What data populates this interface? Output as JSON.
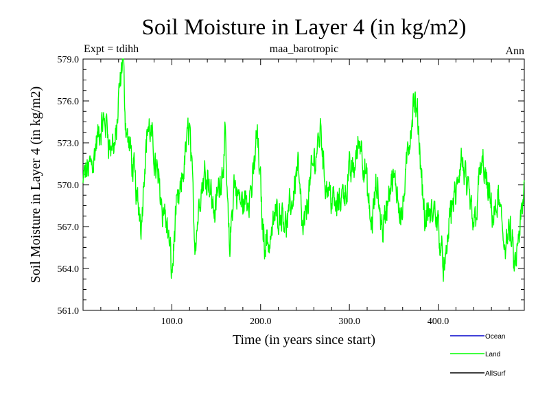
{
  "chart_data": {
    "type": "line",
    "title": "Soil Moisture in Layer 4 (in kg/m2)",
    "subtitle_left": "Expt = tdihh",
    "subtitle_center": "maa_barotropic",
    "subtitle_right": "Ann",
    "xlabel": "Time (in years since start)",
    "ylabel": "Soil Moisture in Layer 4 (in kg/m2)",
    "xlim": [
      0,
      497
    ],
    "ylim": [
      561.0,
      579.0
    ],
    "x_ticks": [
      100,
      200,
      300,
      400
    ],
    "x_tick_labels": [
      "100.0",
      "200.0",
      "300.0",
      "400.0"
    ],
    "y_ticks": [
      561,
      564,
      567,
      570,
      573,
      576,
      579
    ],
    "y_tick_labels": [
      "561.0",
      "564.0",
      "567.0",
      "570.0",
      "573.0",
      "576.0",
      "579.0"
    ],
    "legend": {
      "position": "bottom-right",
      "entries": [
        {
          "name": "Ocean",
          "color": "#0000cc"
        },
        {
          "name": "Land",
          "color": "#00ff00"
        },
        {
          "name": "AllSurf",
          "color": "#000000"
        }
      ]
    },
    "series": [
      {
        "name": "Land",
        "color": "#00ff00",
        "anchors": [
          [
            0,
            570.0
          ],
          [
            8,
            571.5
          ],
          [
            14,
            572.8
          ],
          [
            20,
            573.5
          ],
          [
            26,
            574.5
          ],
          [
            32,
            572.5
          ],
          [
            37,
            573.2
          ],
          [
            40,
            575.6
          ],
          [
            43,
            577.3
          ],
          [
            45,
            578.8
          ],
          [
            48,
            574.5
          ],
          [
            55,
            571.5
          ],
          [
            62,
            568.5
          ],
          [
            66,
            568.0
          ],
          [
            70,
            572.5
          ],
          [
            73,
            574.5
          ],
          [
            80,
            572.0
          ],
          [
            88,
            569.5
          ],
          [
            95,
            567.0
          ],
          [
            100,
            563.5
          ],
          [
            104,
            567.5
          ],
          [
            110,
            569.0
          ],
          [
            116,
            572.5
          ],
          [
            120,
            574.5
          ],
          [
            126,
            566.0
          ],
          [
            132,
            569.5
          ],
          [
            140,
            571.5
          ],
          [
            148,
            568.0
          ],
          [
            155,
            570.5
          ],
          [
            160,
            573.0
          ],
          [
            165,
            565.0
          ],
          [
            170,
            570.0
          ],
          [
            178,
            568.5
          ],
          [
            186,
            569.0
          ],
          [
            192,
            570.5
          ],
          [
            196,
            574.0
          ],
          [
            203,
            566.5
          ],
          [
            210,
            566.0
          ],
          [
            217,
            568.0
          ],
          [
            225,
            568.5
          ],
          [
            230,
            567.0
          ],
          [
            236,
            569.0
          ],
          [
            242,
            572.0
          ],
          [
            248,
            566.0
          ],
          [
            254,
            569.5
          ],
          [
            262,
            572.0
          ],
          [
            268,
            574.5
          ],
          [
            272,
            570.5
          ],
          [
            280,
            569.5
          ],
          [
            285,
            568.0
          ],
          [
            292,
            569.5
          ],
          [
            300,
            570.5
          ],
          [
            306,
            571.5
          ],
          [
            312,
            573.5
          ],
          [
            318,
            571.0
          ],
          [
            324,
            566.5
          ],
          [
            330,
            569.5
          ],
          [
            338,
            567.0
          ],
          [
            346,
            570.0
          ],
          [
            353,
            569.5
          ],
          [
            360,
            568.5
          ],
          [
            366,
            572.0
          ],
          [
            372,
            575.8
          ],
          [
            378,
            573.5
          ],
          [
            385,
            567.5
          ],
          [
            392,
            567.5
          ],
          [
            398,
            568.0
          ],
          [
            404,
            565.5
          ],
          [
            408,
            563.5
          ],
          [
            414,
            568.5
          ],
          [
            420,
            569.0
          ],
          [
            426,
            571.5
          ],
          [
            432,
            569.5
          ],
          [
            440,
            567.0
          ],
          [
            446,
            570.5
          ],
          [
            451,
            571.5
          ],
          [
            456,
            569.0
          ],
          [
            462,
            567.5
          ],
          [
            468,
            568.5
          ],
          [
            475,
            566.0
          ],
          [
            480,
            566.5
          ],
          [
            486,
            564.0
          ],
          [
            492,
            566.0
          ],
          [
            497,
            569.5
          ]
        ],
        "noise_amplitude": 1.1,
        "samples": 1400
      }
    ]
  }
}
